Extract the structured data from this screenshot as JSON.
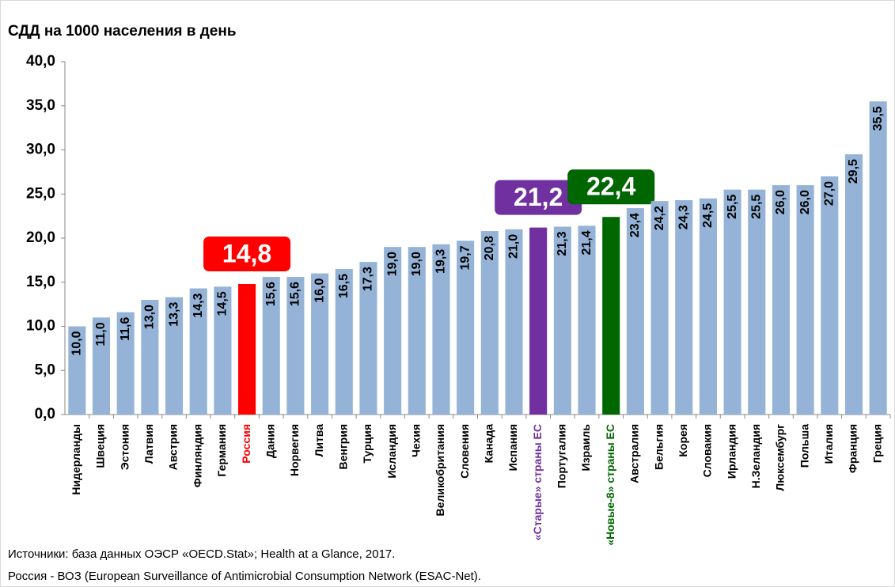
{
  "chart_data": {
    "type": "bar",
    "title": "СДД на 1000 населения в день",
    "categories": [
      "Нидерланды",
      "Швеция",
      "Эстония",
      "Латвия",
      "Австрия",
      "Финляндия",
      "Германия",
      "Россия",
      "Дания",
      "Норвегия",
      "Литва",
      "Венгрия",
      "Турция",
      "Исландия",
      "Чехия",
      "Великобритания",
      "Словения",
      "Канада",
      "Испания",
      "«Старые» страны ЕС",
      "Португалия",
      "Израиль",
      "«Новые-8» страны ЕС",
      "Австралия",
      "Бельгия",
      "Корея",
      "Словакия",
      "Ирландия",
      "Н.Зеландия",
      "Люксембург",
      "Польша",
      "Италия",
      "Франция",
      "Греция"
    ],
    "values": [
      10.0,
      11.0,
      11.6,
      13.0,
      13.3,
      14.3,
      14.5,
      14.8,
      15.6,
      15.6,
      16.0,
      16.5,
      17.3,
      19.0,
      19.0,
      19.3,
      19.7,
      20.8,
      21.0,
      21.2,
      21.3,
      21.4,
      22.4,
      23.4,
      24.2,
      24.3,
      24.5,
      25.5,
      25.5,
      26.0,
      26.0,
      27.0,
      29.5,
      35.5
    ],
    "value_labels": [
      "10,0",
      "11,0",
      "11,6",
      "13,0",
      "13,3",
      "14,3",
      "14,5",
      "14,8",
      "15,6",
      "15,6",
      "16,0",
      "16,5",
      "17,3",
      "19,0",
      "19,0",
      "19,3",
      "19,7",
      "20,8",
      "21,0",
      "21,2",
      "21,3",
      "21,4",
      "22,4",
      "23,4",
      "24,2",
      "24,3",
      "24,5",
      "25,5",
      "25,5",
      "26,0",
      "26,0",
      "27,0",
      "29,5",
      "35,5"
    ],
    "color": "#95b3d7",
    "colors": [
      "#95b3d7",
      "#95b3d7",
      "#95b3d7",
      "#95b3d7",
      "#95b3d7",
      "#95b3d7",
      "#95b3d7",
      "#ff0000",
      "#95b3d7",
      "#95b3d7",
      "#95b3d7",
      "#95b3d7",
      "#95b3d7",
      "#95b3d7",
      "#95b3d7",
      "#95b3d7",
      "#95b3d7",
      "#95b3d7",
      "#95b3d7",
      "#7030a0",
      "#95b3d7",
      "#95b3d7",
      "#006600",
      "#95b3d7",
      "#95b3d7",
      "#95b3d7",
      "#95b3d7",
      "#95b3d7",
      "#95b3d7",
      "#95b3d7",
      "#95b3d7",
      "#95b3d7",
      "#95b3d7",
      "#95b3d7"
    ],
    "ylim": [
      0,
      40
    ],
    "yticks": [
      {
        "value": 0,
        "label": "0,0"
      },
      {
        "value": 5,
        "label": "5,0"
      },
      {
        "value": 10,
        "label": "10,0"
      },
      {
        "value": 15,
        "label": "15,0"
      },
      {
        "value": 20,
        "label": "20,0"
      },
      {
        "value": 25,
        "label": "25,0"
      },
      {
        "value": 30,
        "label": "30,0"
      },
      {
        "value": 35,
        "label": "35,0"
      },
      {
        "value": 40,
        "label": "40,0"
      }
    ],
    "notes": [
      "Источники: база данных ОЭСР «OECD.Stat»; Health at a Glance, 2017.",
      "Россия - ВОЗ (European Surveillance of Antimicrobial Consumption Network (ESAC-Net)."
    ]
  }
}
